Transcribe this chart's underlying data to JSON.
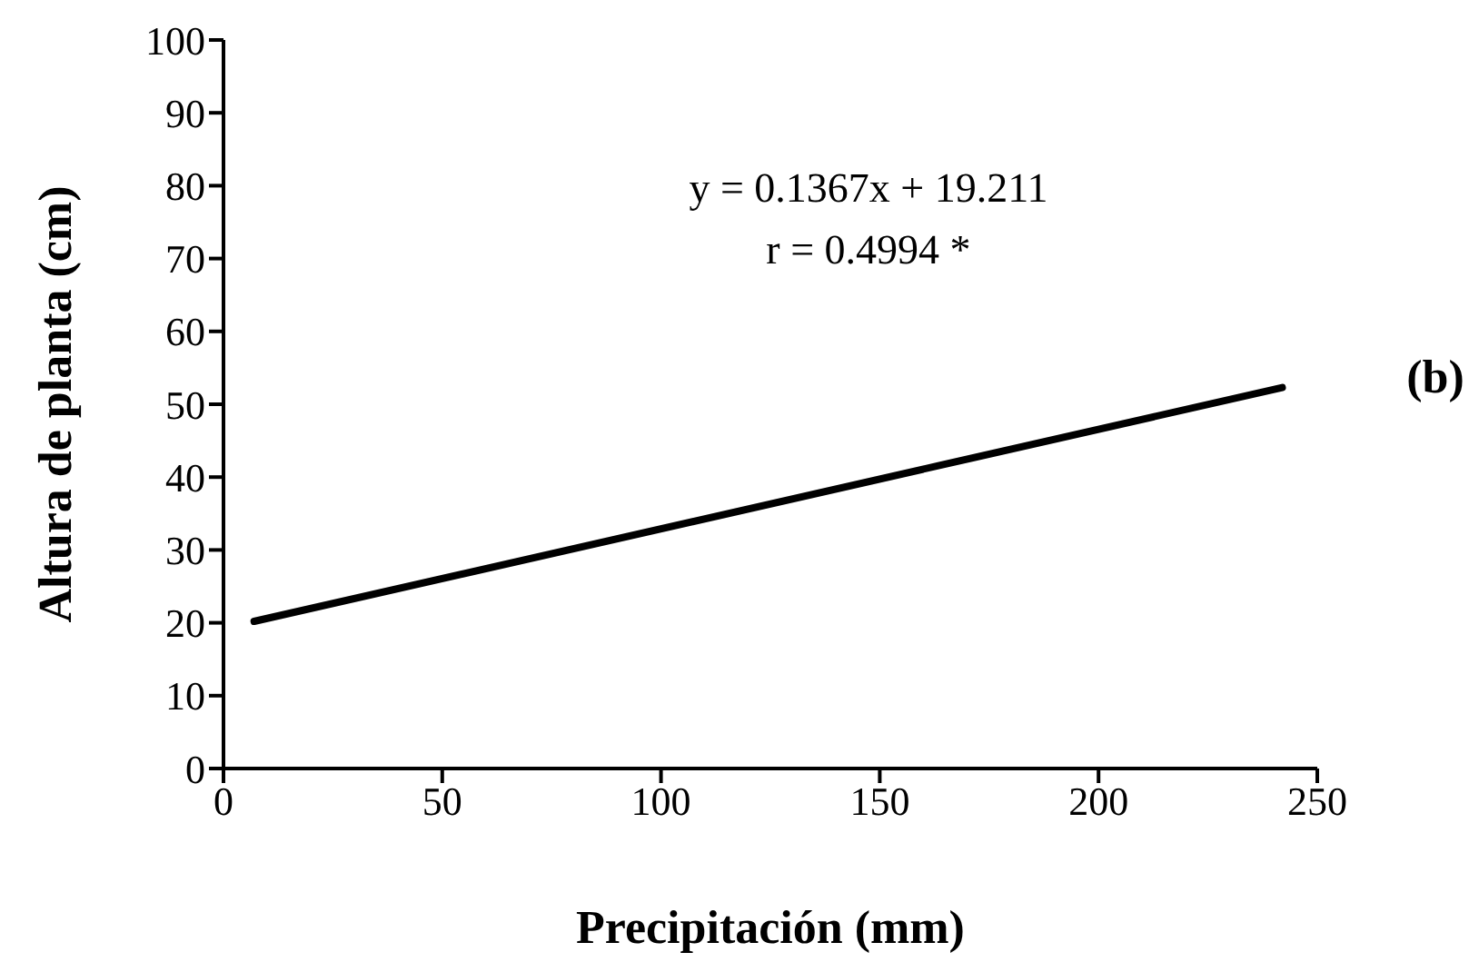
{
  "chart_data": {
    "type": "line",
    "xlabel": "Precipitación (mm)",
    "ylabel": "Altura de planta (cm)",
    "annotations": [
      "y = 0.1367x + 19.211",
      "r = 0.4994 *",
      "(b)"
    ],
    "x": [
      7,
      242
    ],
    "series": [
      {
        "color": "#000000",
        "values": [
          20.2,
          52.3
        ]
      }
    ],
    "xlim": [
      0,
      250
    ],
    "xticks": [
      0,
      50,
      100,
      150,
      200,
      250
    ],
    "ylim": [
      0,
      100
    ],
    "yticks": [
      0,
      10,
      20,
      30,
      40,
      50,
      60,
      70,
      80,
      90,
      100
    ],
    "grid": false,
    "legend": false,
    "marker": "none",
    "line_style": "solid"
  }
}
